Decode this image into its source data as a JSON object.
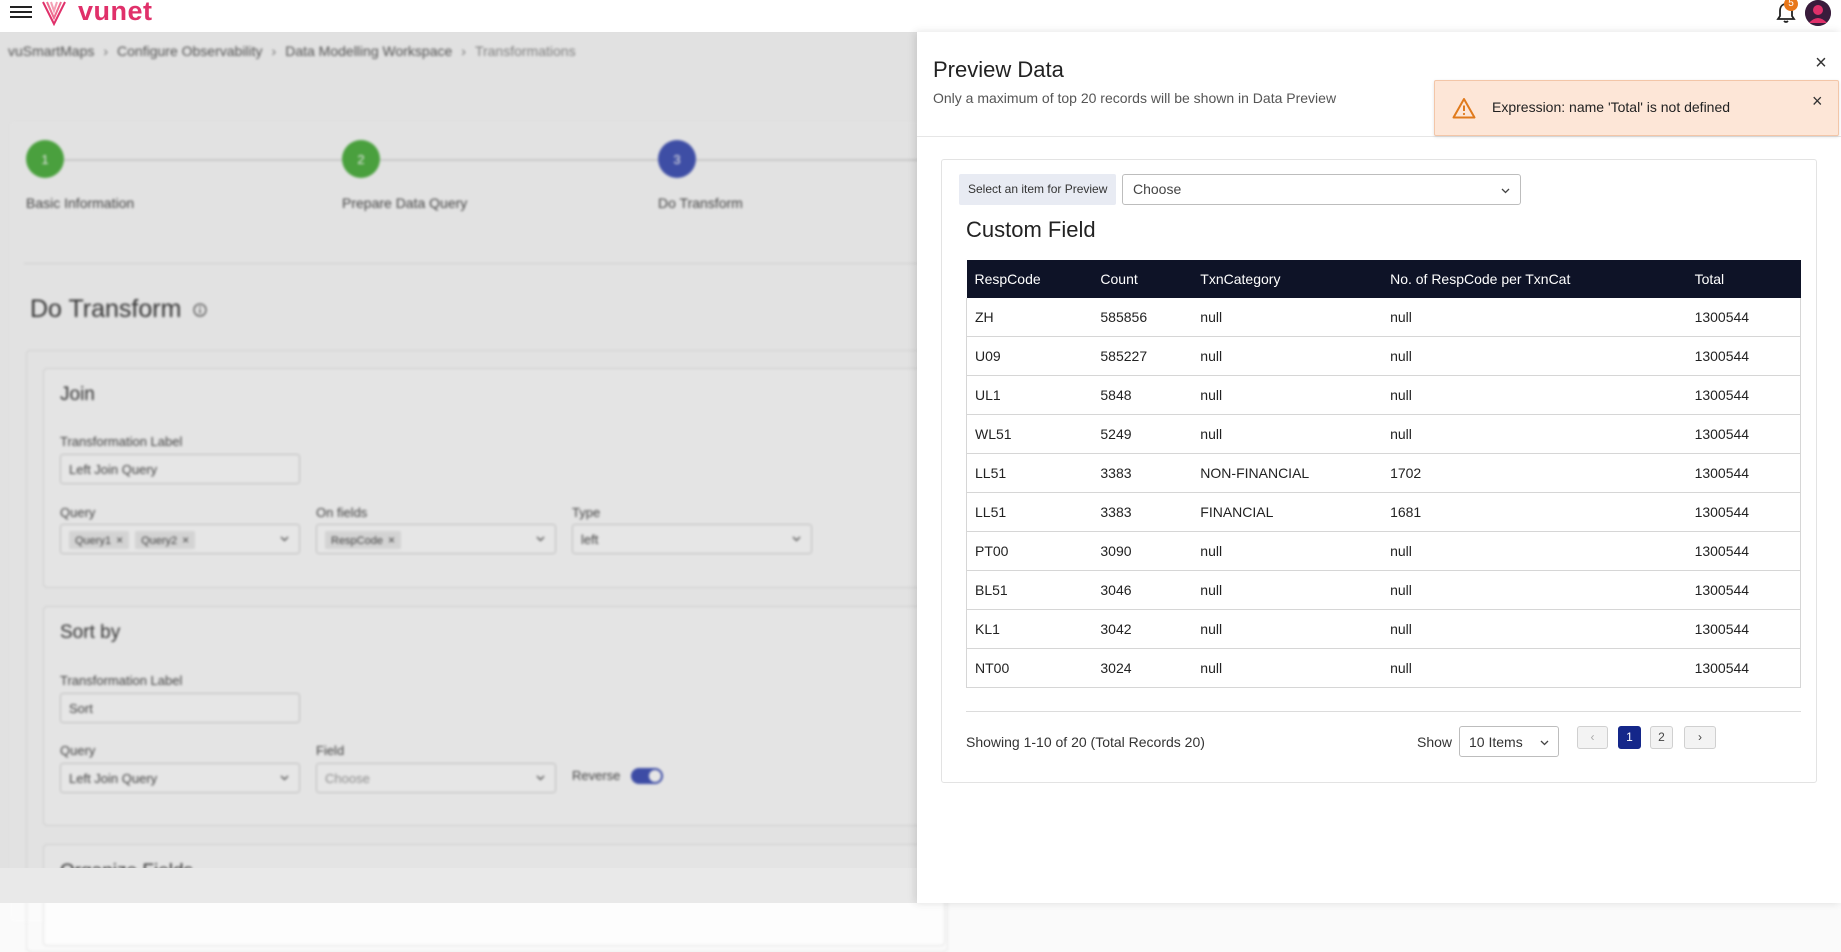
{
  "app": {
    "brand": "vunet",
    "notification_count": "5"
  },
  "breadcrumb": [
    "vuSmartMaps",
    "Configure Observability",
    "Data Modelling Workspace",
    "Transformations"
  ],
  "stepper": [
    {
      "number": "1",
      "label": "Basic Information",
      "color": "#4caf3e"
    },
    {
      "number": "2",
      "label": "Prepare Data Query",
      "color": "#4caf3e"
    },
    {
      "number": "3",
      "label": "Do Transform",
      "color": "#3f51b5"
    }
  ],
  "page_title": "Do Transform",
  "join": {
    "title": "Join",
    "label_caption": "Transformation Label",
    "label_value": "Left Join Query",
    "query_caption": "Query",
    "query_chips": [
      "Query1",
      "Query2"
    ],
    "fields_caption": "On fields",
    "fields_chips": [
      "RespCode"
    ],
    "type_caption": "Type",
    "type_value": "left"
  },
  "sort": {
    "title": "Sort by",
    "label_caption": "Transformation Label",
    "label_value": "Sort",
    "query_caption": "Query",
    "query_value": "Left Join Query",
    "field_caption": "Field",
    "field_placeholder": "Choose",
    "reverse_caption": "Reverse",
    "reverse_on": true
  },
  "organize": {
    "title": "Organize Fields"
  },
  "drawer": {
    "title": "Preview Data",
    "subtitle": "Only a maximum of top 20 records will be shown in Data Preview",
    "select_label": "Select an item for Preview",
    "select_value": "Choose",
    "table_title": "Custom Field",
    "columns": [
      "RespCode",
      "Count",
      "TxnCategory",
      "No. of RespCode per TxnCat",
      "Total"
    ],
    "rows": [
      [
        "ZH",
        "585856",
        "null",
        "null",
        "1300544"
      ],
      [
        "U09",
        "585227",
        "null",
        "null",
        "1300544"
      ],
      [
        "UL1",
        "5848",
        "null",
        "null",
        "1300544"
      ],
      [
        "WL51",
        "5249",
        "null",
        "null",
        "1300544"
      ],
      [
        "LL51",
        "3383",
        "NON-FINANCIAL",
        "1702",
        "1300544"
      ],
      [
        "LL51",
        "3383",
        "FINANCIAL",
        "1681",
        "1300544"
      ],
      [
        "PT00",
        "3090",
        "null",
        "null",
        "1300544"
      ],
      [
        "BL51",
        "3046",
        "null",
        "null",
        "1300544"
      ],
      [
        "KL1",
        "3042",
        "null",
        "null",
        "1300544"
      ],
      [
        "NT00",
        "3024",
        "null",
        "null",
        "1300544"
      ]
    ],
    "showing_text": "Showing 1-10 of 20 (Total Records 20)",
    "show_label": "Show",
    "page_size": "10 Items",
    "pages": [
      "1",
      "2"
    ],
    "current_page": "1",
    "prev_symbol": "‹",
    "next_symbol": "›"
  },
  "toast": {
    "message": "Expression: name 'Total' is not defined",
    "type": "warning"
  },
  "colors": {
    "brand": "#e0306a",
    "table_header": "#0e1327",
    "active_page": "#14278a",
    "toast_bg": "#fde6d7",
    "toggle": "#3d4fb5"
  }
}
